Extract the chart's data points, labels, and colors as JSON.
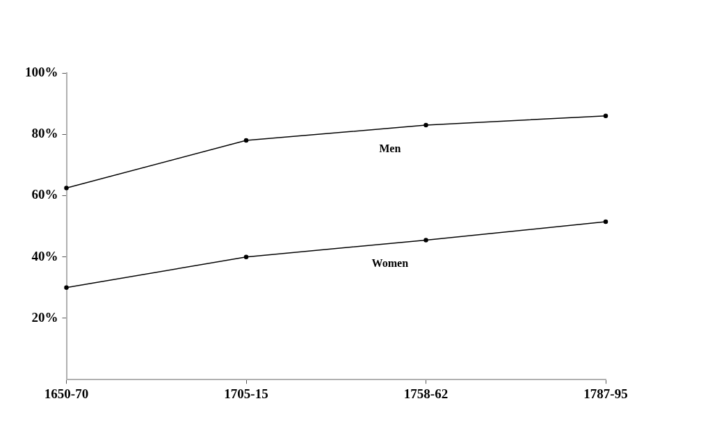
{
  "chart_data": {
    "type": "line",
    "categories": [
      "1650-70",
      "1705-15",
      "1758-62",
      "1787-95"
    ],
    "series": [
      {
        "name": "Men",
        "color": "#000000",
        "values": [
          62.5,
          78,
          83,
          86
        ]
      },
      {
        "name": "Women",
        "color": "#000000",
        "values": [
          30,
          40,
          45.5,
          51.5
        ]
      }
    ],
    "ylim": [
      0,
      100
    ],
    "yticks": [
      {
        "value": 20,
        "label": "20%"
      },
      {
        "value": 40,
        "label": "40%"
      },
      {
        "value": 60,
        "label": "60%"
      },
      {
        "value": 80,
        "label": "80%"
      },
      {
        "value": 100,
        "label": "100%"
      }
    ],
    "grid": false,
    "legend": false,
    "marker": "circle",
    "line_style": "solid"
  }
}
